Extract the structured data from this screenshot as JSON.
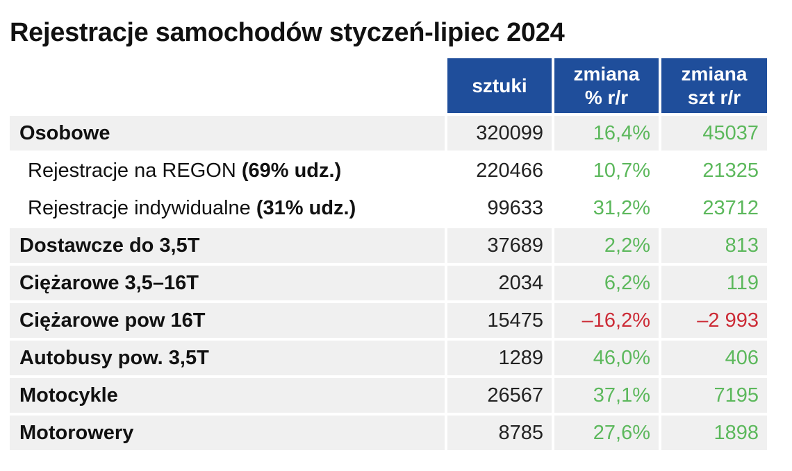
{
  "title": "Rejestracje samochodów styczeń-lipiec 2024",
  "columns": [
    "sztuki",
    "zmiana\n% r/r",
    "zmiana\nszt r/r"
  ],
  "rows": [
    {
      "label": "Osobowe",
      "note": "",
      "sztuki": "320099",
      "pct": "16,4%",
      "szt": "45037",
      "sub": false,
      "trend": "pos"
    },
    {
      "label": "Rejestracje na REGON ",
      "note": "(69% udz.)",
      "sztuki": "220466",
      "pct": "10,7%",
      "szt": "21325",
      "sub": true,
      "trend": "pos"
    },
    {
      "label": "Rejestracje indywidualne ",
      "note": "(31% udz.)",
      "sztuki": "99633",
      "pct": "31,2%",
      "szt": "23712",
      "sub": true,
      "trend": "pos"
    },
    {
      "label": "Dostawcze do 3,5T",
      "note": "",
      "sztuki": "37689",
      "pct": "2,2%",
      "szt": "813",
      "sub": false,
      "trend": "pos"
    },
    {
      "label": "Ciężarowe 3,5–16T",
      "note": "",
      "sztuki": "2034",
      "pct": "6,2%",
      "szt": "119",
      "sub": false,
      "trend": "pos"
    },
    {
      "label": "Ciężarowe pow 16T",
      "note": "",
      "sztuki": "15475",
      "pct": "–16,2%",
      "szt": "–2 993",
      "sub": false,
      "trend": "neg"
    },
    {
      "label": "Autobusy pow. 3,5T",
      "note": "",
      "sztuki": "1289",
      "pct": "46,0%",
      "szt": "406",
      "sub": false,
      "trend": "pos"
    },
    {
      "label": "Motocykle",
      "note": "",
      "sztuki": "26567",
      "pct": "37,1%",
      "szt": "7195",
      "sub": false,
      "trend": "pos"
    },
    {
      "label": "Motorowery",
      "note": "",
      "sztuki": "8785",
      "pct": "27,6%",
      "szt": "1898",
      "sub": false,
      "trend": "pos"
    }
  ],
  "colors": {
    "header_bg": "#1f4e9b",
    "positive": "#5cb85c",
    "negative": "#cc2b36",
    "row_shade": "#f0f0f0"
  },
  "chart_data": {
    "type": "table",
    "title": "Rejestracje samochodów styczeń-lipiec 2024",
    "columns": [
      "sztuki",
      "zmiana % r/r",
      "zmiana szt r/r"
    ],
    "rows": [
      {
        "category": "Osobowe",
        "sztuki": 320099,
        "zmiana_pct_rr": 16.4,
        "zmiana_szt_rr": 45037
      },
      {
        "category": "Rejestracje na REGON (69% udz.)",
        "sztuki": 220466,
        "zmiana_pct_rr": 10.7,
        "zmiana_szt_rr": 21325
      },
      {
        "category": "Rejestracje indywidualne (31% udz.)",
        "sztuki": 99633,
        "zmiana_pct_rr": 31.2,
        "zmiana_szt_rr": 23712
      },
      {
        "category": "Dostawcze do 3,5T",
        "sztuki": 37689,
        "zmiana_pct_rr": 2.2,
        "zmiana_szt_rr": 813
      },
      {
        "category": "Ciężarowe 3,5–16T",
        "sztuki": 2034,
        "zmiana_pct_rr": 6.2,
        "zmiana_szt_rr": 119
      },
      {
        "category": "Ciężarowe pow 16T",
        "sztuki": 15475,
        "zmiana_pct_rr": -16.2,
        "zmiana_szt_rr": -2993
      },
      {
        "category": "Autobusy pow. 3,5T",
        "sztuki": 1289,
        "zmiana_pct_rr": 46.0,
        "zmiana_szt_rr": 406
      },
      {
        "category": "Motocykle",
        "sztuki": 26567,
        "zmiana_pct_rr": 37.1,
        "zmiana_szt_rr": 7195
      },
      {
        "category": "Motorowery",
        "sztuki": 8785,
        "zmiana_pct_rr": 27.6,
        "zmiana_szt_rr": 1898
      }
    ]
  }
}
